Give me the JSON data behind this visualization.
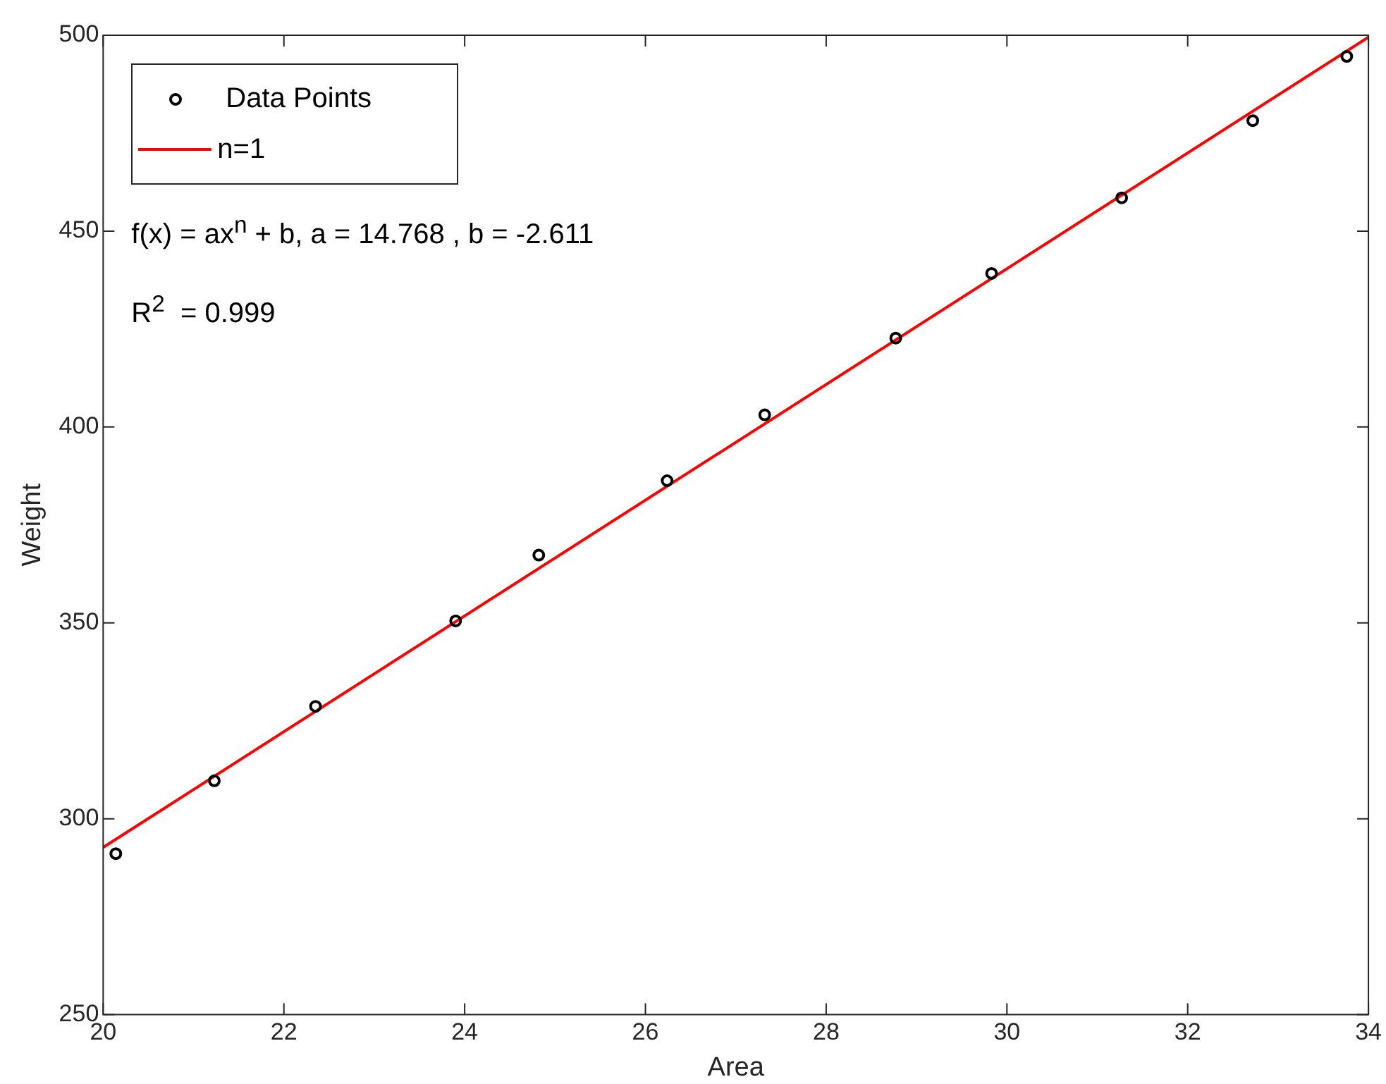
{
  "chart_data": {
    "type": "scatter",
    "xlabel": "Area",
    "ylabel": "Weight",
    "xlim": [
      20,
      34
    ],
    "ylim": [
      250,
      500
    ],
    "xticks": [
      20,
      22,
      24,
      26,
      28,
      30,
      32,
      34
    ],
    "yticks": [
      250,
      300,
      350,
      400,
      450,
      500
    ],
    "grid": false,
    "legend": "top left",
    "x": [
      20.14,
      21.23,
      22.35,
      23.9,
      24.82,
      26.24,
      27.32,
      28.77,
      29.83,
      31.27,
      32.72,
      33.76
    ],
    "series": [
      {
        "name": "Data Points",
        "color": "#000000",
        "marker": "circle",
        "values": [
          291.1,
          309.7,
          328.7,
          350.5,
          367.3,
          386.3,
          403.1,
          422.7,
          439.2,
          458.5,
          478.2,
          494.6
        ]
      },
      {
        "name": "n=1",
        "type": "line",
        "color": "#ff0000",
        "x": [
          20,
          34
        ],
        "values": [
          292.7,
          499.5
        ]
      }
    ],
    "annotations": [
      "f(x) = ax$^{n}$ + b, a = 14.768 , b = -2.611",
      "R$^{2}$  = 0.999"
    ]
  }
}
